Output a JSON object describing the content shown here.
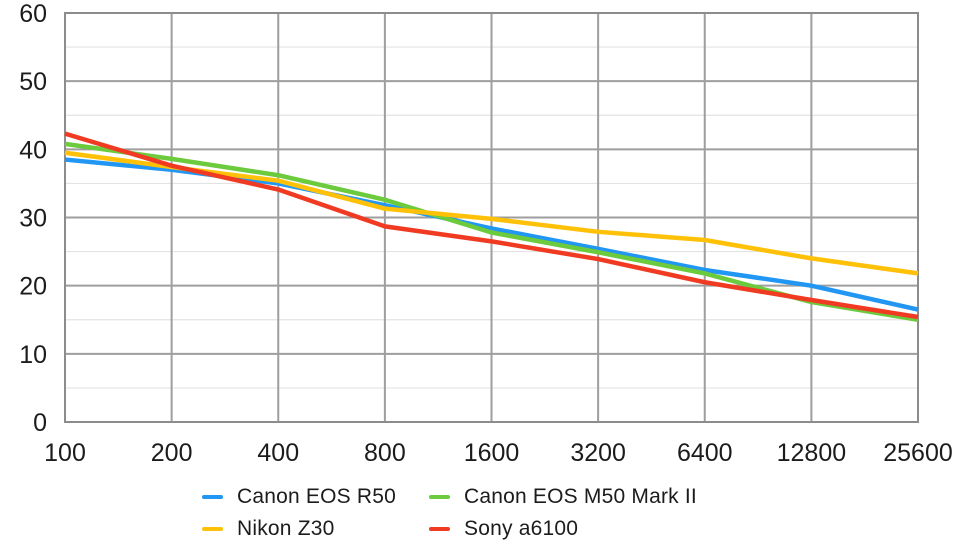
{
  "chart_data": {
    "type": "line",
    "title": "",
    "xlabel": "",
    "ylabel": "",
    "categories": [
      "100",
      "200",
      "400",
      "800",
      "1600",
      "3200",
      "6400",
      "12800",
      "25600"
    ],
    "x_scale": "log2-categorical",
    "ylim": [
      0,
      60
    ],
    "y_major_ticks": [
      0,
      10,
      20,
      30,
      40,
      50,
      60
    ],
    "y_minor_ticks": [
      5,
      15,
      25,
      35,
      45,
      55
    ],
    "grid": true,
    "legend_position": "bottom",
    "series": [
      {
        "name": "Canon EOS R50",
        "color": "#2196F3",
        "values": [
          38.5,
          37.0,
          35.0,
          31.8,
          28.4,
          25.4,
          22.3,
          20.0,
          16.5
        ]
      },
      {
        "name": "Canon EOS M50 Mark II",
        "color": "#6BCB3D",
        "values": [
          40.8,
          38.6,
          36.2,
          32.6,
          27.8,
          24.9,
          21.8,
          17.6,
          15.0
        ]
      },
      {
        "name": "Nikon Z30",
        "color": "#FFC107",
        "values": [
          39.5,
          37.4,
          35.4,
          31.3,
          29.8,
          27.9,
          26.7,
          24.0,
          21.8
        ]
      },
      {
        "name": "Sony a6100",
        "color": "#F03B22",
        "values": [
          42.3,
          37.6,
          34.1,
          28.7,
          26.5,
          23.9,
          20.5,
          17.9,
          15.4
        ]
      }
    ]
  },
  "style": {
    "background": "#FFFFFF",
    "border_color": "#8C8C8C",
    "grid_major_color": "#9E9E9E",
    "grid_minor_color": "#E3E3E3",
    "text_color": "#1C1C1C"
  }
}
